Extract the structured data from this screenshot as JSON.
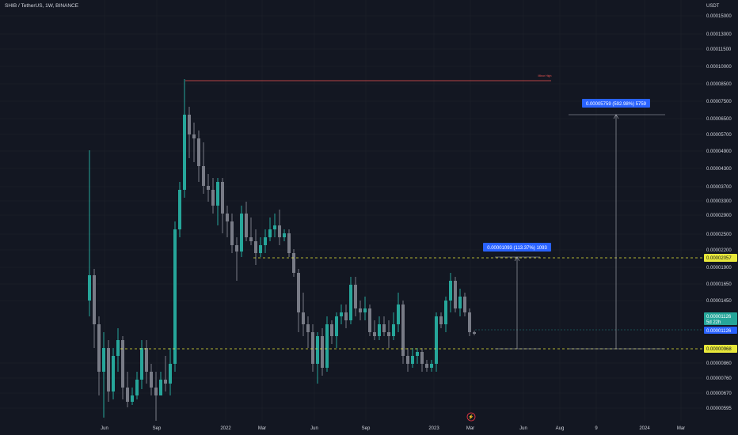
{
  "header": {
    "title": "SHIB / TetherUS, 1W, BINANCE"
  },
  "colors": {
    "up": "#26a69a",
    "down": "#ef5350",
    "bg": "#131722",
    "grid": "#1e222d",
    "text": "#d1d4dc",
    "dashed": "#e8e83a",
    "measure": "#2962ff",
    "candle_up": "#26a69a",
    "candle_down": "#787b86"
  },
  "chart_data": {
    "type": "candlestick",
    "title": "SHIB / TetherUS, 1W, BINANCE",
    "y_unit": "USDT",
    "y_scale": "log",
    "ylim": [
      5.7e-06,
      1.6e-05
    ],
    "y_ticks": [
      "0.00015000",
      "0.00013000",
      "0.00011500",
      "0.00010000",
      "0.00008500",
      "0.00007500",
      "0.00006500",
      "0.00005700",
      "0.00004900",
      "0.00004300",
      "0.00003700",
      "0.00003300",
      "0.00002900",
      "0.00002500",
      "0.00002200",
      "0.00001900",
      "0.00001650",
      "0.00001450",
      "0.00000860",
      "0.00000760",
      "0.00000670",
      "0.00000595"
    ],
    "x_ticks": [
      "Jun",
      "Sep",
      "2022",
      "Mar",
      "Jun",
      "Sep",
      "2023",
      "Mar",
      "Jun",
      "Aug",
      "9",
      "2024",
      "Mar"
    ],
    "levels": [
      {
        "label": "0.00002057",
        "value": 2.057e-05
      },
      {
        "label": "0.00000968",
        "value": 9.68e-06
      }
    ],
    "last_price": {
      "label": "0.00001126",
      "countdown": "5d 22h"
    },
    "crosshair_price": "0.00001126",
    "measures": [
      {
        "label": "0.00001093 (113.37%) 1093"
      },
      {
        "label": "0.00005759 (592.98%) 5759"
      }
    ],
    "annotations": [
      {
        "label": "Minor High"
      }
    ]
  }
}
